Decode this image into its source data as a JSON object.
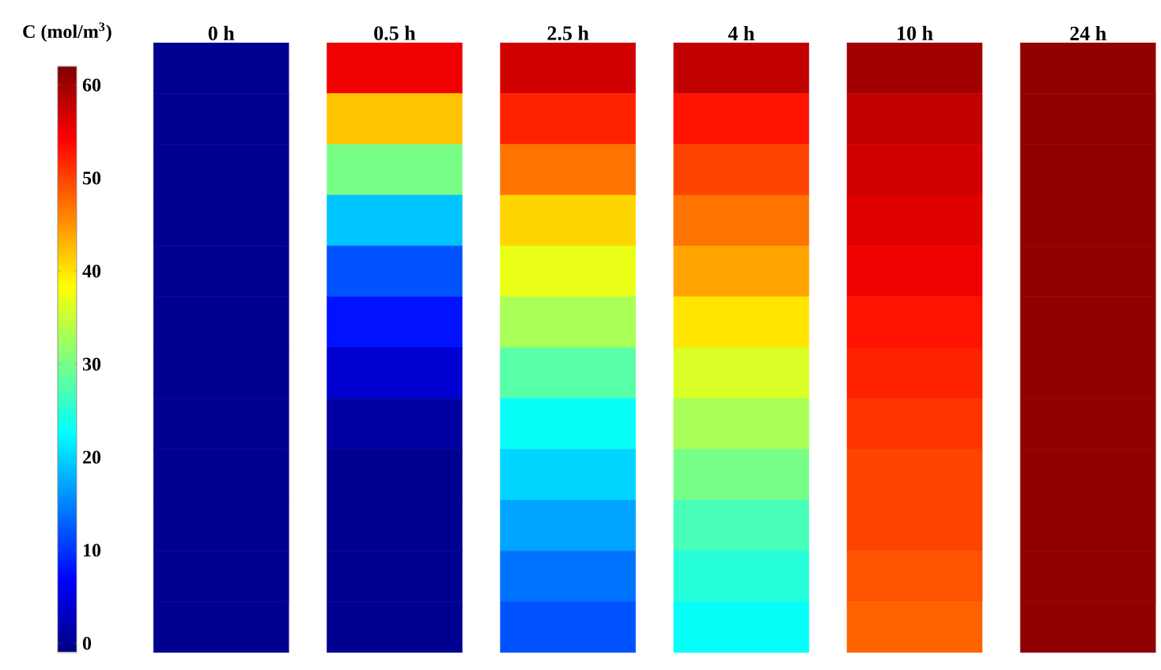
{
  "chart_data": {
    "type": "heatmap",
    "clabel": "C (mol/m$^{3}$)",
    "clim": [
      -1,
      62
    ],
    "cticks": [
      0,
      10,
      20,
      30,
      40,
      50,
      60
    ],
    "categories": [
      "0 h",
      "0.5 h",
      "2.5 h",
      "4 h",
      "10 h",
      "24 h"
    ],
    "y_categories": [
      null,
      null,
      null,
      null,
      null,
      null,
      null,
      null,
      null,
      null,
      null,
      null
    ],
    "cells": [
      [
        0,
        55,
        57,
        58,
        60,
        61
      ],
      [
        0,
        42,
        52,
        53,
        58,
        61
      ],
      [
        0,
        30,
        47,
        50,
        57,
        61
      ],
      [
        0,
        19,
        41,
        47,
        56,
        61
      ],
      [
        0,
        12,
        37,
        44,
        55,
        61
      ],
      [
        0,
        8,
        33,
        40,
        53,
        61
      ],
      [
        0,
        4,
        28,
        36,
        52,
        61
      ],
      [
        0,
        1,
        23,
        33,
        51,
        61
      ],
      [
        0,
        0,
        20,
        30,
        50,
        61
      ],
      [
        0,
        0,
        17,
        27,
        50,
        61
      ],
      [
        0,
        0,
        14,
        25,
        49,
        61
      ],
      [
        0,
        0,
        12,
        23,
        48,
        61
      ]
    ]
  }
}
